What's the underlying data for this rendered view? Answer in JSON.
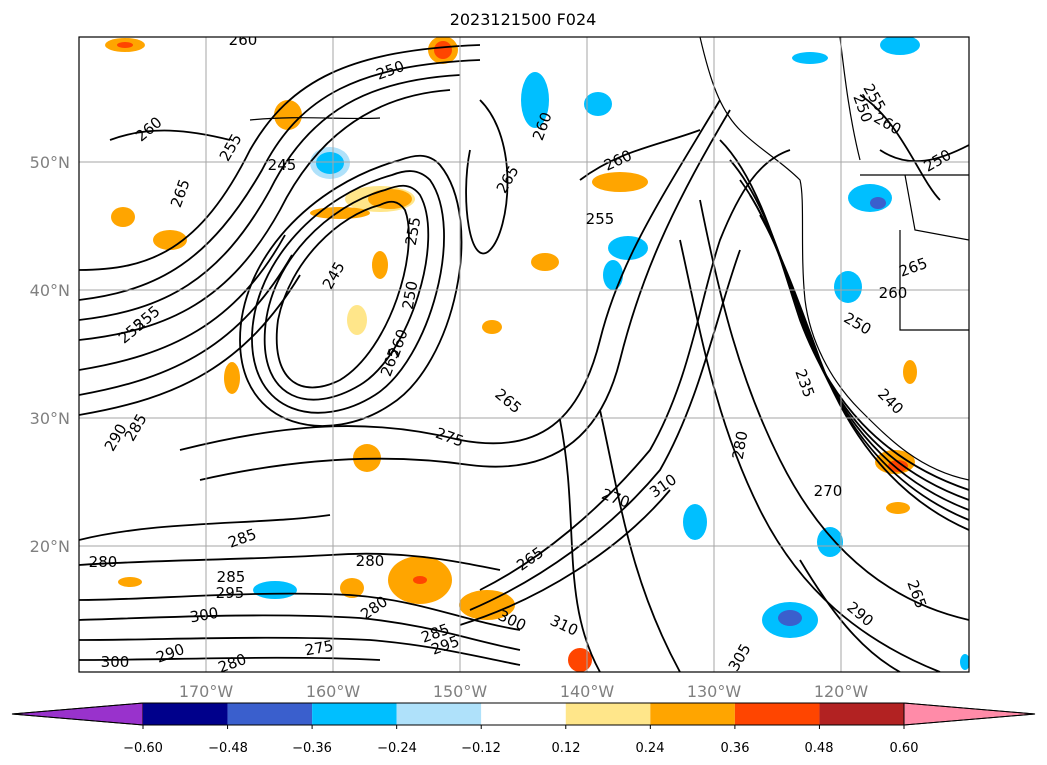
{
  "title": "2023121500 F024",
  "map": {
    "lat_labels": [
      "50°N",
      "40°N",
      "30°N",
      "20°N"
    ],
    "lon_labels": [
      "170°W",
      "160°W",
      "150°W",
      "140°W",
      "130°W",
      "120°W"
    ],
    "contour_labels": [
      "260",
      "250",
      "260",
      "255",
      "245",
      "265",
      "265",
      "260",
      "260",
      "255",
      "255",
      "250",
      "245",
      "255",
      "250",
      "255",
      "260",
      "265",
      "255",
      "250",
      "260",
      "265",
      "260",
      "250",
      "265",
      "275",
      "235",
      "240",
      "290",
      "285",
      "280",
      "270",
      "310",
      "270",
      "285",
      "280",
      "285",
      "295",
      "300",
      "280",
      "265",
      "300",
      "310",
      "295",
      "285",
      "275",
      "280",
      "300",
      "290",
      "265",
      "305",
      "290",
      "280"
    ]
  },
  "colorbar": {
    "ticks": [
      "−0.60",
      "−0.48",
      "−0.36",
      "−0.24",
      "−0.12",
      "0.12",
      "0.24",
      "0.36",
      "0.48",
      "0.60"
    ],
    "colors": [
      "#9932cc",
      "#00008b",
      "#3a5fcd",
      "#00bfff",
      "#afe1fa",
      "#ffffff",
      "#ffe68a",
      "#ffa500",
      "#ff4500",
      "#b22222",
      "#ff8ba8"
    ]
  }
}
